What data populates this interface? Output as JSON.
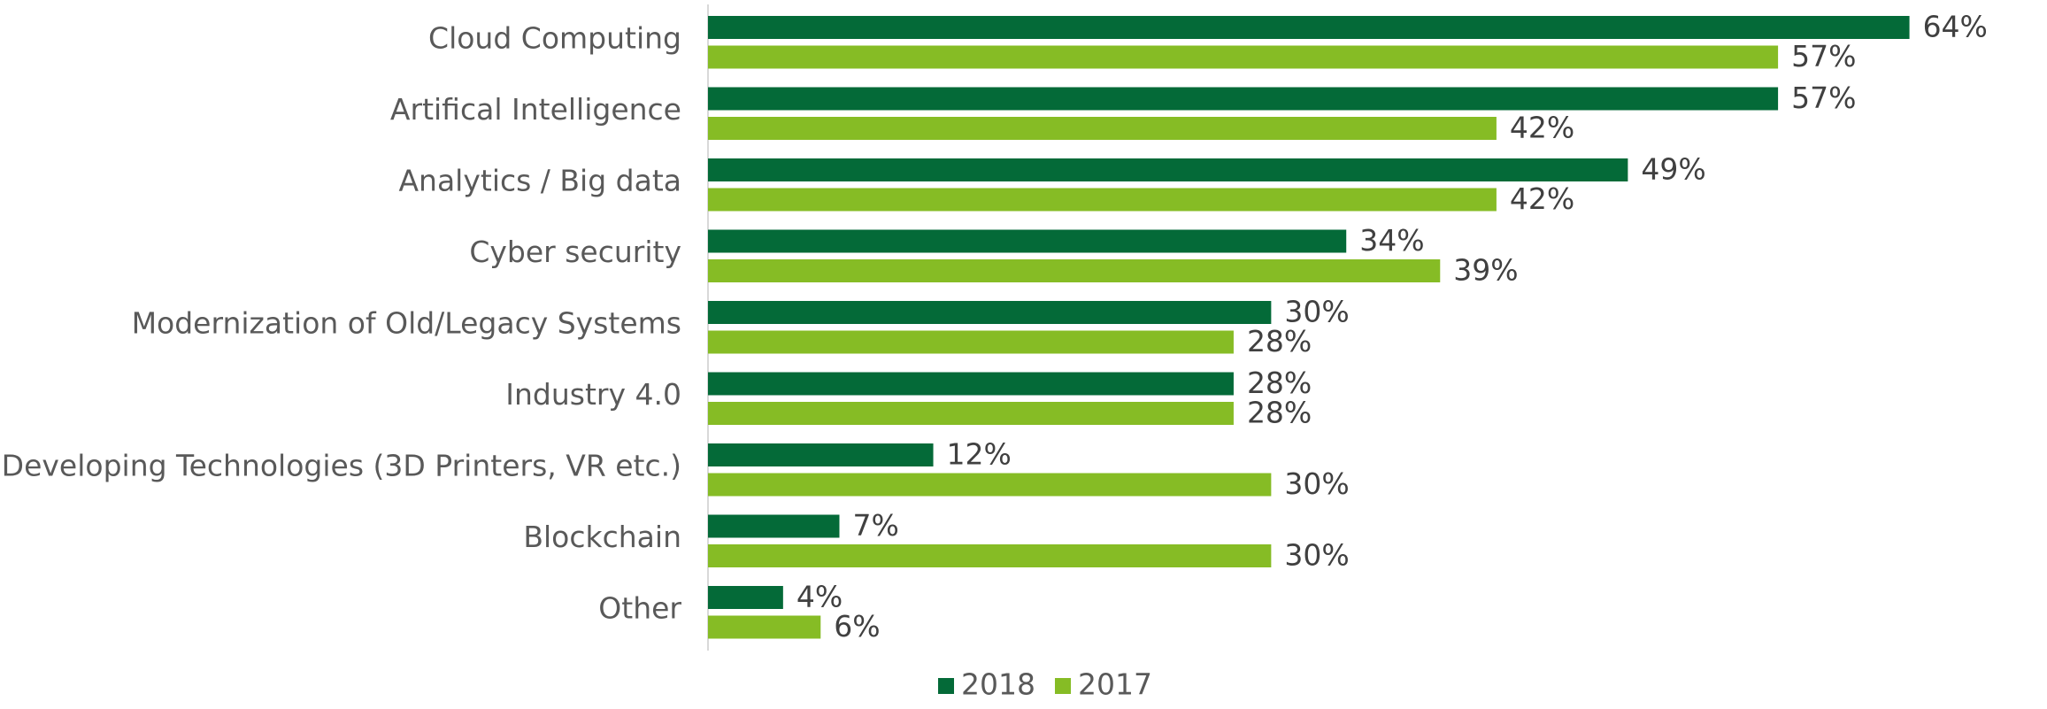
{
  "chart_data": {
    "type": "bar",
    "orientation": "horizontal",
    "categories": [
      "Cloud Computing",
      "Artifical Intelligence",
      "Analytics / Big data",
      "Cyber security",
      "Modernization of Old/Legacy Systems",
      "Industry 4.0",
      "Developing Technologies (3D Printers, VR etc.)",
      "Blockchain",
      "Other"
    ],
    "series": [
      {
        "name": "2018",
        "color": "#046A38",
        "values": [
          64,
          57,
          49,
          34,
          30,
          28,
          12,
          7,
          4
        ],
        "labels": [
          "64%",
          "57%",
          "49%",
          "34%",
          "30%",
          "28%",
          "12%",
          "7%",
          "4%"
        ]
      },
      {
        "name": "2017",
        "color": "#86BC25",
        "values": [
          57,
          42,
          42,
          39,
          28,
          28,
          30,
          30,
          6
        ],
        "labels": [
          "57%",
          "42%",
          "42%",
          "39%",
          "28%",
          "28%",
          "30%",
          "30%",
          "6%"
        ]
      }
    ],
    "xlim": [
      0,
      66
    ],
    "value_suffix": "%",
    "grid": false,
    "legend_position": "bottom"
  }
}
